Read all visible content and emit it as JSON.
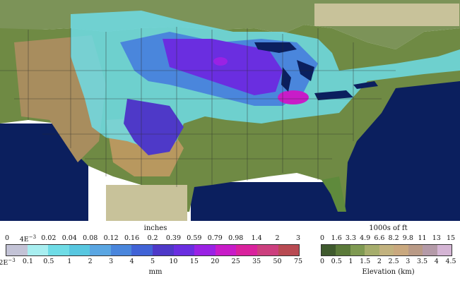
{
  "precip_legend": {
    "top_label": "inches",
    "bottom_label": "mm",
    "top_ticks": [
      "0",
      "4E-3",
      "0.02",
      "0.04",
      "0.08",
      "0.12",
      "0.16",
      "0.2",
      "0.39",
      "0.59",
      "0.79",
      "0.98",
      "1.4",
      "2",
      "3"
    ],
    "bottom_ticks": [
      "2E-3",
      "0.1",
      "0.5",
      "1",
      "2",
      "3",
      "4",
      "5",
      "10",
      "15",
      "20",
      "25",
      "35",
      "50",
      "75"
    ],
    "colors": [
      "#c3c3d6",
      "#a8eef0",
      "#6fdce6",
      "#58c7e0",
      "#5aa6e2",
      "#4a86dc",
      "#4163d6",
      "#4e39c8",
      "#6a2ee0",
      "#9a22e4",
      "#c81cc8",
      "#d9229d",
      "#cc3f7e",
      "#b84a52"
    ]
  },
  "elev_legend": {
    "top_label": "1000s of ft",
    "bottom_label": "Elevation (km)",
    "top_ticks": [
      "0",
      "1.6",
      "3.3",
      "4.9",
      "6.6",
      "8.2",
      "9.8",
      "11",
      "13",
      "15"
    ],
    "bottom_ticks": [
      "0",
      "0.5",
      "1",
      "1.5",
      "2",
      "2.5",
      "3",
      "3.5",
      "4",
      "4.5"
    ],
    "colors": [
      "#3f5a2e",
      "#5b7a3a",
      "#7f9a52",
      "#a6ad6c",
      "#c2b27e",
      "#c9a87e",
      "#b99a86",
      "#b49aa8",
      "#d4b4d4"
    ]
  },
  "colors": {
    "water": "#0b1f5e",
    "land": "#6f8a44",
    "snow_blue": "#5aa6e2",
    "snow_purple": "#6a2ee0",
    "snow_magenta": "#c81cc8"
  }
}
